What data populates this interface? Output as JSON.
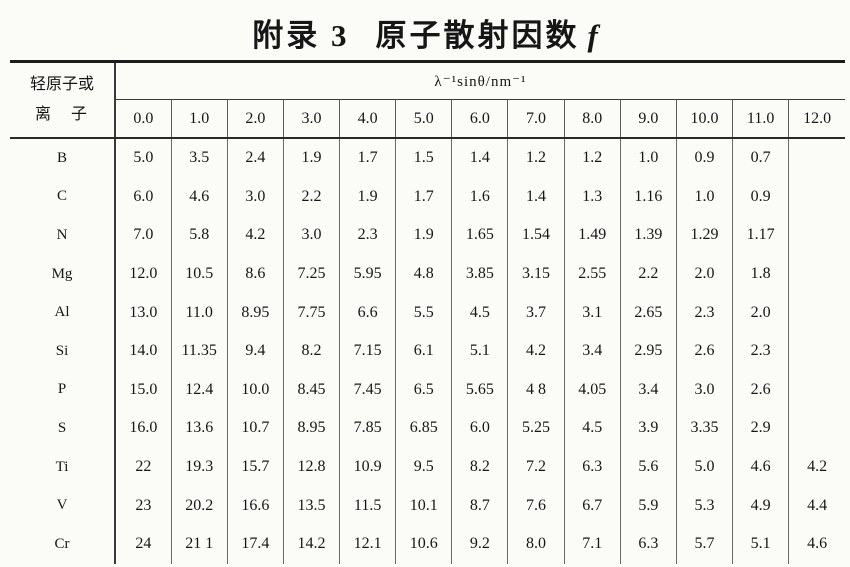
{
  "page": {
    "title_prefix": "附录 3",
    "title_main": "原子散射因数",
    "title_italic": "f"
  },
  "table": {
    "corner_header_line1": "轻原子或",
    "corner_header_line2": "离　子",
    "span_header": "λ⁻¹sinθ/nm⁻¹",
    "columns": [
      "0.0",
      "1.0",
      "2.0",
      "3.0",
      "4.0",
      "5.0",
      "6.0",
      "7.0",
      "8.0",
      "9.0",
      "10.0",
      "11.0",
      "12.0"
    ],
    "rows": [
      {
        "element": "B",
        "values": [
          "5.0",
          "3.5",
          "2.4",
          "1.9",
          "1.7",
          "1.5",
          "1.4",
          "1.2",
          "1.2",
          "1.0",
          "0.9",
          "0.7",
          ""
        ]
      },
      {
        "element": "C",
        "values": [
          "6.0",
          "4.6",
          "3.0",
          "2.2",
          "1.9",
          "1.7",
          "1.6",
          "1.4",
          "1.3",
          "1.16",
          "1.0",
          "0.9",
          ""
        ]
      },
      {
        "element": "N",
        "values": [
          "7.0",
          "5.8",
          "4.2",
          "3.0",
          "2.3",
          "1.9",
          "1.65",
          "1.54",
          "1.49",
          "1.39",
          "1.29",
          "1.17",
          ""
        ]
      },
      {
        "element": "Mg",
        "values": [
          "12.0",
          "10.5",
          "8.6",
          "7.25",
          "5.95",
          "4.8",
          "3.85",
          "3.15",
          "2.55",
          "2.2",
          "2.0",
          "1.8",
          ""
        ]
      },
      {
        "element": "Al",
        "values": [
          "13.0",
          "11.0",
          "8.95",
          "7.75",
          "6.6",
          "5.5",
          "4.5",
          "3.7",
          "3.1",
          "2.65",
          "2.3",
          "2.0",
          ""
        ]
      },
      {
        "element": "Si",
        "values": [
          "14.0",
          "11.35",
          "9.4",
          "8.2",
          "7.15",
          "6.1",
          "5.1",
          "4.2",
          "3.4",
          "2.95",
          "2.6",
          "2.3",
          ""
        ]
      },
      {
        "element": "P",
        "values": [
          "15.0",
          "12.4",
          "10.0",
          "8.45",
          "7.45",
          "6.5",
          "5.65",
          "4 8",
          "4.05",
          "3.4",
          "3.0",
          "2.6",
          ""
        ]
      },
      {
        "element": "S",
        "values": [
          "16.0",
          "13.6",
          "10.7",
          "8.95",
          "7.85",
          "6.85",
          "6.0",
          "5.25",
          "4.5",
          "3.9",
          "3.35",
          "2.9",
          ""
        ]
      },
      {
        "element": "Ti",
        "values": [
          "22",
          "19.3",
          "15.7",
          "12.8",
          "10.9",
          "9.5",
          "8.2",
          "7.2",
          "6.3",
          "5.6",
          "5.0",
          "4.6",
          "4.2"
        ]
      },
      {
        "element": "V",
        "values": [
          "23",
          "20.2",
          "16.6",
          "13.5",
          "11.5",
          "10.1",
          "8.7",
          "7.6",
          "6.7",
          "5.9",
          "5.3",
          "4.9",
          "4.4"
        ]
      },
      {
        "element": "Cr",
        "values": [
          "24",
          "21 1",
          "17.4",
          "14.2",
          "12.1",
          "10.6",
          "9.2",
          "8.0",
          "7.1",
          "6.3",
          "5.7",
          "5.1",
          "4.6"
        ]
      }
    ]
  }
}
